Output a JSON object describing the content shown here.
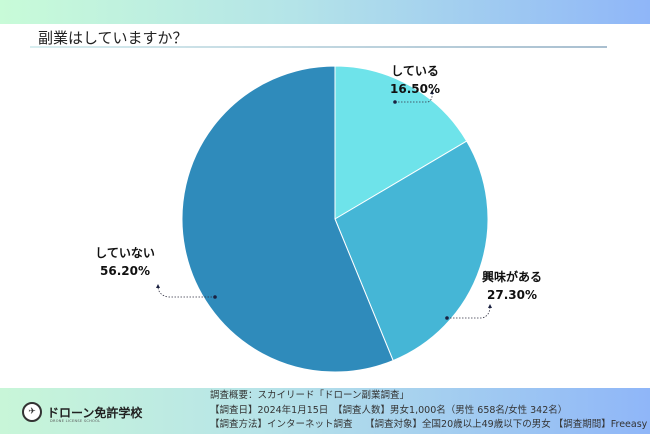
{
  "header": {
    "title": "副業はしていますか？"
  },
  "chart_data": {
    "type": "pie",
    "title": "副業はしていますか？",
    "start": "top",
    "direction": "clockwise",
    "slices": [
      {
        "label": "している",
        "value": 16.5,
        "display": "16.50%",
        "color": "#6ee3ea"
      },
      {
        "label": "興味がある",
        "value": 27.3,
        "display": "27.30%",
        "color": "#45b6d6"
      },
      {
        "label": "していない",
        "value": 56.2,
        "display": "56.20%",
        "color": "#2f8bbb"
      }
    ]
  },
  "footer": {
    "logo": {
      "name": "ドローン免許学校",
      "sub": "DRONE LICENSE SCHOOL"
    },
    "survey_lines": [
      "調査概要：スカイリード「ドローン副業調査」",
      "【調査日】2024年1月15日　【調査人数】男女1,000名（男性 658名/女性 342名）",
      "【調査方法】インターネット調査　 【調査対象】全国20歳以上49歳以下の男女 【調査期間】Freeasy"
    ]
  }
}
